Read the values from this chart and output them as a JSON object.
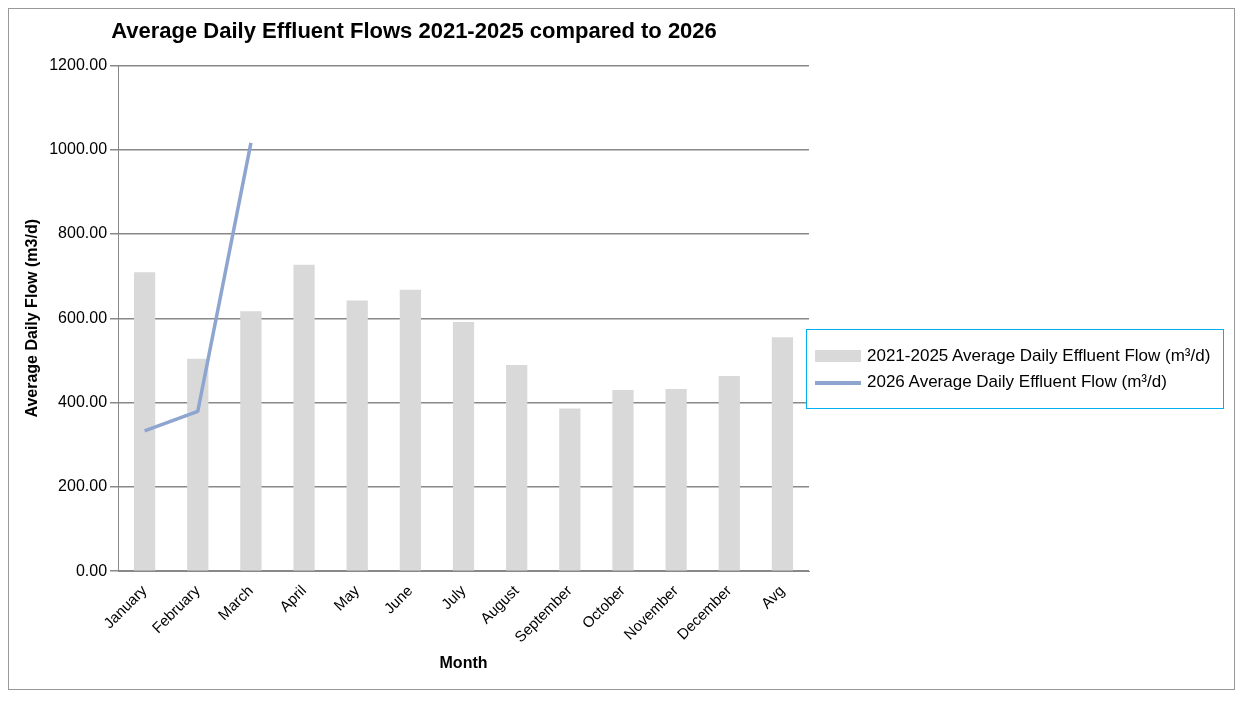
{
  "chart_data": {
    "type": "bar",
    "title": "Average Daily Effluent Flows 2021-2025 compared to 2026",
    "xlabel": "Month",
    "ylabel": "Average Daily Flow (m3/d)",
    "categories": [
      "January",
      "February",
      "March",
      "April",
      "May",
      "June",
      "July",
      "August",
      "September",
      "October",
      "November",
      "December",
      "Avg"
    ],
    "series": [
      {
        "name": "2021-2025 Average Daily Effluent Flow (m³/d)",
        "color": "#d9d9d9",
        "values": [
          709,
          504,
          617,
          727,
          642,
          668,
          591,
          489,
          386,
          430,
          432,
          463,
          555
        ]
      },
      {
        "name": "2026 Average Daily Effluent Flow (m³/d)",
        "type": "line",
        "color": "#8ea5cf",
        "values": [
          333,
          379,
          1016,
          null,
          null,
          null,
          null,
          null,
          null,
          null,
          null,
          null,
          null
        ]
      }
    ],
    "ylim": [
      0,
      1200
    ],
    "yticks": [
      {
        "value": 0,
        "label": "0.00"
      },
      {
        "value": 200,
        "label": "200.00"
      },
      {
        "value": 400,
        "label": "400.00"
      },
      {
        "value": 600,
        "label": "600.00"
      },
      {
        "value": 800,
        "label": "800.00"
      },
      {
        "value": 1000,
        "label": "1000.00"
      },
      {
        "value": 1200,
        "label": "1200.00"
      }
    ],
    "grid": "y",
    "legend": "right",
    "marker": "none",
    "line_style": "solid"
  }
}
